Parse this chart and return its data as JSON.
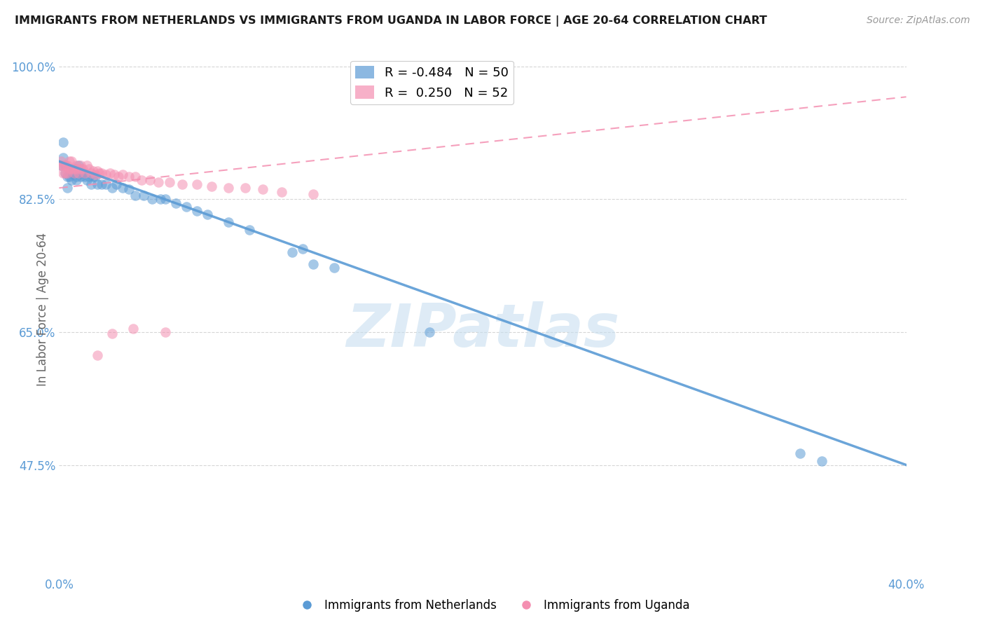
{
  "title": "IMMIGRANTS FROM NETHERLANDS VS IMMIGRANTS FROM UGANDA IN LABOR FORCE | AGE 20-64 CORRELATION CHART",
  "source": "Source: ZipAtlas.com",
  "ylabel": "In Labor Force | Age 20-64",
  "xlim": [
    0.0,
    0.4
  ],
  "ylim": [
    0.33,
    1.03
  ],
  "ytick_labels": [
    "100.0%",
    "82.5%",
    "65.0%",
    "47.5%"
  ],
  "yticks": [
    1.0,
    0.825,
    0.65,
    0.475
  ],
  "netherlands_R": -0.484,
  "netherlands_N": 50,
  "uganda_R": 0.25,
  "uganda_N": 52,
  "netherlands_color": "#5b9bd5",
  "uganda_color": "#f48fb1",
  "netherlands_scatter_x": [
    0.001,
    0.002,
    0.002,
    0.003,
    0.003,
    0.004,
    0.004,
    0.005,
    0.005,
    0.006,
    0.006,
    0.007,
    0.007,
    0.008,
    0.008,
    0.009,
    0.01,
    0.01,
    0.011,
    0.012,
    0.013,
    0.014,
    0.015,
    0.016,
    0.017,
    0.018,
    0.02,
    0.022,
    0.025,
    0.027,
    0.03,
    0.033,
    0.036,
    0.04,
    0.044,
    0.048,
    0.055,
    0.06,
    0.07,
    0.08,
    0.09,
    0.11,
    0.12,
    0.175,
    0.35,
    0.36,
    0.115,
    0.13,
    0.05,
    0.065
  ],
  "netherlands_scatter_y": [
    0.87,
    0.9,
    0.88,
    0.87,
    0.86,
    0.855,
    0.84,
    0.865,
    0.855,
    0.86,
    0.85,
    0.865,
    0.86,
    0.855,
    0.85,
    0.87,
    0.86,
    0.855,
    0.86,
    0.855,
    0.85,
    0.855,
    0.845,
    0.855,
    0.855,
    0.845,
    0.845,
    0.845,
    0.84,
    0.845,
    0.84,
    0.838,
    0.83,
    0.83,
    0.825,
    0.825,
    0.82,
    0.815,
    0.805,
    0.795,
    0.785,
    0.755,
    0.74,
    0.65,
    0.49,
    0.48,
    0.76,
    0.735,
    0.825,
    0.81
  ],
  "uganda_scatter_x": [
    0.001,
    0.001,
    0.002,
    0.002,
    0.003,
    0.003,
    0.004,
    0.004,
    0.005,
    0.005,
    0.006,
    0.006,
    0.007,
    0.007,
    0.008,
    0.008,
    0.009,
    0.01,
    0.01,
    0.011,
    0.012,
    0.013,
    0.014,
    0.015,
    0.016,
    0.017,
    0.018,
    0.019,
    0.02,
    0.022,
    0.024,
    0.026,
    0.028,
    0.03,
    0.033,
    0.036,
    0.039,
    0.043,
    0.047,
    0.052,
    0.058,
    0.065,
    0.072,
    0.08,
    0.088,
    0.096,
    0.105,
    0.12,
    0.018,
    0.025,
    0.035,
    0.05
  ],
  "uganda_scatter_y": [
    0.875,
    0.87,
    0.87,
    0.86,
    0.87,
    0.86,
    0.87,
    0.86,
    0.875,
    0.865,
    0.865,
    0.875,
    0.865,
    0.86,
    0.87,
    0.865,
    0.86,
    0.87,
    0.865,
    0.865,
    0.86,
    0.87,
    0.865,
    0.86,
    0.862,
    0.858,
    0.862,
    0.86,
    0.86,
    0.858,
    0.86,
    0.858,
    0.855,
    0.858,
    0.855,
    0.855,
    0.85,
    0.85,
    0.848,
    0.848,
    0.845,
    0.845,
    0.842,
    0.84,
    0.84,
    0.838,
    0.835,
    0.832,
    0.62,
    0.648,
    0.655,
    0.65
  ],
  "netherlands_trendline_x": [
    0.0,
    0.4
  ],
  "netherlands_trendline_y": [
    0.875,
    0.475
  ],
  "uganda_trendline_x": [
    0.0,
    0.4
  ],
  "uganda_trendline_y": [
    0.84,
    0.96
  ],
  "background_color": "#ffffff",
  "grid_color": "#cccccc",
  "title_color": "#1a1a1a",
  "axis_label_color": "#666666",
  "tick_label_color": "#5b9bd5"
}
